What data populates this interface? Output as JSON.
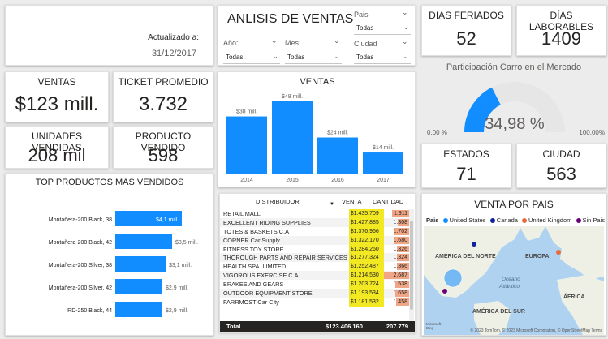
{
  "updated": {
    "label": "Actualizado a:",
    "value": "31/12/2017"
  },
  "header": {
    "title": "ANLISIS DE VENTAS",
    "slicers": [
      {
        "label": "Año:",
        "value": "Todas"
      },
      {
        "label": "Mes:",
        "value": "Todas"
      },
      {
        "label": "Pais",
        "value": "Todas"
      },
      {
        "label": "Ciudad",
        "value": "Todas"
      }
    ]
  },
  "kpis": {
    "ventas": {
      "title": "VENTAS",
      "value": "$123 mill."
    },
    "ticket": {
      "title": "TICKET PROMEDIO",
      "value": "3.732"
    },
    "unidades": {
      "title": "UNIDADES VENDIDAS",
      "value": "208 mil"
    },
    "producto": {
      "title": "PRODUCTO VENDIDO",
      "value": "598"
    },
    "feriados": {
      "title": "DIAS FERIADOS",
      "value": "52"
    },
    "laborables": {
      "title": "DÍAS LABORABLES",
      "value": "1409"
    },
    "estados": {
      "title": "ESTADOS",
      "value": "71"
    },
    "ciudad": {
      "title": "CIUDAD",
      "value": "563"
    }
  },
  "gauge": {
    "title": "Participación Carro en el Mercado",
    "value_label": "34,98 %",
    "min_label": "0,00 %",
    "max_label": "100,00%",
    "fraction": 0.3498,
    "fill_color": "#118dff",
    "track_color": "#e6e6e6"
  },
  "chart_data": [
    {
      "type": "bar",
      "title": "VENTAS",
      "categories": [
        "2014",
        "2015",
        "2016",
        "2017"
      ],
      "values": [
        38,
        48,
        24,
        14
      ],
      "value_labels": [
        "$38 mill.",
        "$48 mill.",
        "$24 mill.",
        "$14 mill."
      ],
      "ylim": [
        0,
        48
      ],
      "color": "#118dff"
    },
    {
      "type": "bar",
      "orientation": "horizontal",
      "title": "TOP PRODUCTOS MAS VENDIDOS",
      "categories": [
        "Montañera-200 Black, 38",
        "Montañera-200 Black, 42",
        "Montañera-200 Silver, 38",
        "Montañera-200 Silver, 42",
        "RD-250 Black, 44"
      ],
      "values": [
        4.1,
        3.5,
        3.1,
        2.9,
        2.9
      ],
      "value_labels": [
        "$4,1 mill.",
        "$3,5 mill.",
        "$3,1 mill.",
        "$2,9 mill.",
        "$2,9 mill."
      ],
      "xlim": [
        0,
        4.1
      ],
      "color": "#118dff"
    }
  ],
  "table": {
    "headers": [
      "DISTRIBUIDOR",
      "VENTA",
      "CANTIDAD"
    ],
    "rows": [
      {
        "name": "RETAIL MALL",
        "venta": "$1.435.709",
        "cantidad": "1.911",
        "qty": 1911
      },
      {
        "name": "EXCELLENT RIDING SUPPLIES",
        "venta": "$1.427.885",
        "cantidad": "1.308",
        "qty": 1308
      },
      {
        "name": "TOTES & BASKETS C.A",
        "venta": "$1.376.966",
        "cantidad": "1.702",
        "qty": 1702
      },
      {
        "name": "CORNER Car Supply",
        "venta": "$1.322.170",
        "cantidad": "1.680",
        "qty": 1680
      },
      {
        "name": "FITNESS TOY STORE",
        "venta": "$1.284.260",
        "cantidad": "1.326",
        "qty": 1326
      },
      {
        "name": "THOROUGH PARTS AND REPAIR SERVICES",
        "venta": "$1.277.324",
        "cantidad": "1.324",
        "qty": 1324
      },
      {
        "name": "HEALTH SPA. LIMITED",
        "venta": "$1.252.487",
        "cantidad": "1.366",
        "qty": 1366
      },
      {
        "name": "VIGOROUS EXERCISE C.A",
        "venta": "$1.214.530",
        "cantidad": "2.687",
        "qty": 2687
      },
      {
        "name": "BRAKES AND GEARS",
        "venta": "$1.203.724",
        "cantidad": "1.538",
        "qty": 1538
      },
      {
        "name": "OUTDOOR EQUIPMENT STORE",
        "venta": "$1.193.534",
        "cantidad": "1.658",
        "qty": 1658
      },
      {
        "name": "FARRMOST Car City",
        "venta": "$1.181.532",
        "cantidad": "1.458",
        "qty": 1458
      }
    ],
    "total": {
      "label": "Total",
      "venta": "$123.406.160",
      "cantidad": "207.779"
    },
    "max_qty": 2687
  },
  "map": {
    "title": "VENTA POR PAIS",
    "legend_label": "Pais",
    "legend": [
      {
        "name": "United States",
        "color": "#118dff"
      },
      {
        "name": "Canada",
        "color": "#12239e"
      },
      {
        "name": "United Kingdom",
        "color": "#e66c37"
      },
      {
        "name": "Sin Pais",
        "color": "#6b007b"
      }
    ],
    "regions": {
      "america_norte": "AMÉRICA DEL NORTE",
      "europa": "EUROPA",
      "oceano": "Océano",
      "atlantico": "Atlántico",
      "america_sur": "AMÉRICA DEL SUR",
      "africa": "ÁFRICA"
    },
    "attribution": "© 2023 TomTom, © 2023 Microsoft Corporation, © OpenStreetMap Terms",
    "bing_label": "Microsoft Bing"
  }
}
